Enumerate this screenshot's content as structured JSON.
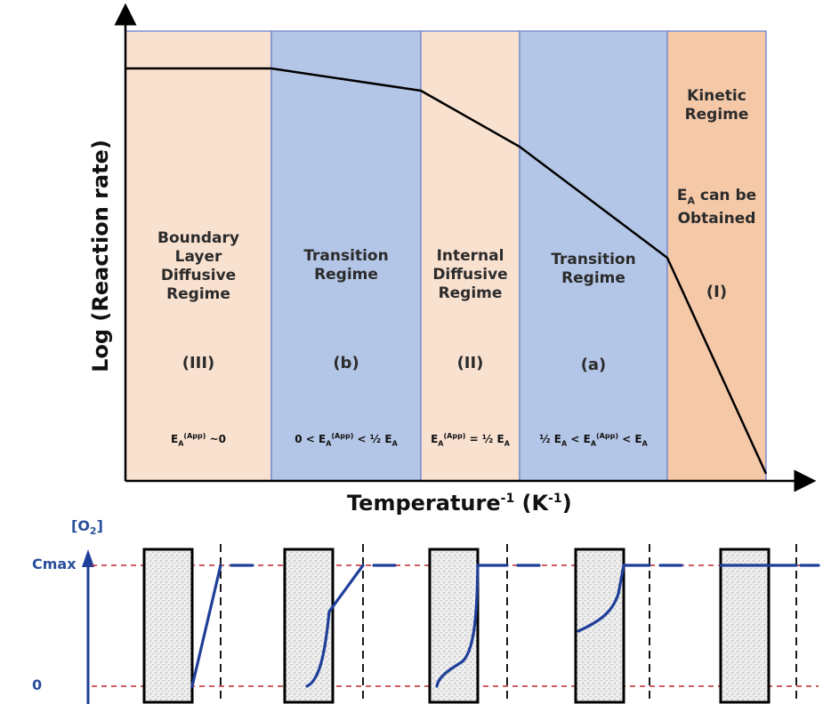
{
  "axes": {
    "y_title": "Log (Reaction rate)",
    "x_title_main": "Temperature",
    "x_title_exp": "-1",
    "x_title_unit_open": " (K",
    "x_title_unit_exp": "-1",
    "x_title_unit_close": ")"
  },
  "regions": [
    {
      "id": "III",
      "label_lines": [
        "Boundary",
        "Layer",
        "Diffusive",
        "Regime"
      ],
      "symbol": "(III)",
      "fill": "#f9e1d0",
      "ea": {
        "parts": [
          "E",
          "A",
          "(App)",
          " ~0"
        ]
      }
    },
    {
      "id": "b",
      "label_lines": [
        "Transition",
        "Regime"
      ],
      "symbol": "(b)",
      "fill": "#b4c6e7",
      "ea": {
        "parts": [
          "0 < E",
          "A",
          "(App)",
          " < ½ E",
          "A"
        ]
      }
    },
    {
      "id": "II",
      "label_lines": [
        "Internal",
        "Diffusive",
        "Regime"
      ],
      "symbol": "(II)",
      "fill": "#f9e1d0",
      "ea": {
        "parts": [
          "E",
          "A",
          "(App)",
          " = ½ E",
          "A"
        ]
      }
    },
    {
      "id": "a",
      "label_lines": [
        "Transition",
        "Regime"
      ],
      "symbol": "(a)",
      "fill": "#b4c6e7",
      "ea": {
        "parts": [
          "½ E",
          "A",
          " < E",
          "A",
          "(App)",
          " < E",
          "A"
        ]
      }
    },
    {
      "id": "I",
      "label_lines": [
        "Kinetic",
        "Regime"
      ],
      "ea_note": {
        "e": "E",
        "sub": "A",
        "rest": " can be",
        "line2": "Obtained"
      },
      "symbol": "(I)",
      "fill": "#f5c9a8"
    }
  ],
  "bottom": {
    "y_label_main": "[O",
    "y_label_sub": "2",
    "y_label_close": "]",
    "cmax_label": "Cmax",
    "zero_label": "0"
  },
  "colors": {
    "peach": "#f9e1d0",
    "blue_region": "#b4c6e7",
    "kinetic": "#f5c9a8",
    "region_border": "#6f86c8",
    "rate_curve": "#000000",
    "profile_blue": "#1f3f99",
    "dashed_red": "#c0262d"
  }
}
